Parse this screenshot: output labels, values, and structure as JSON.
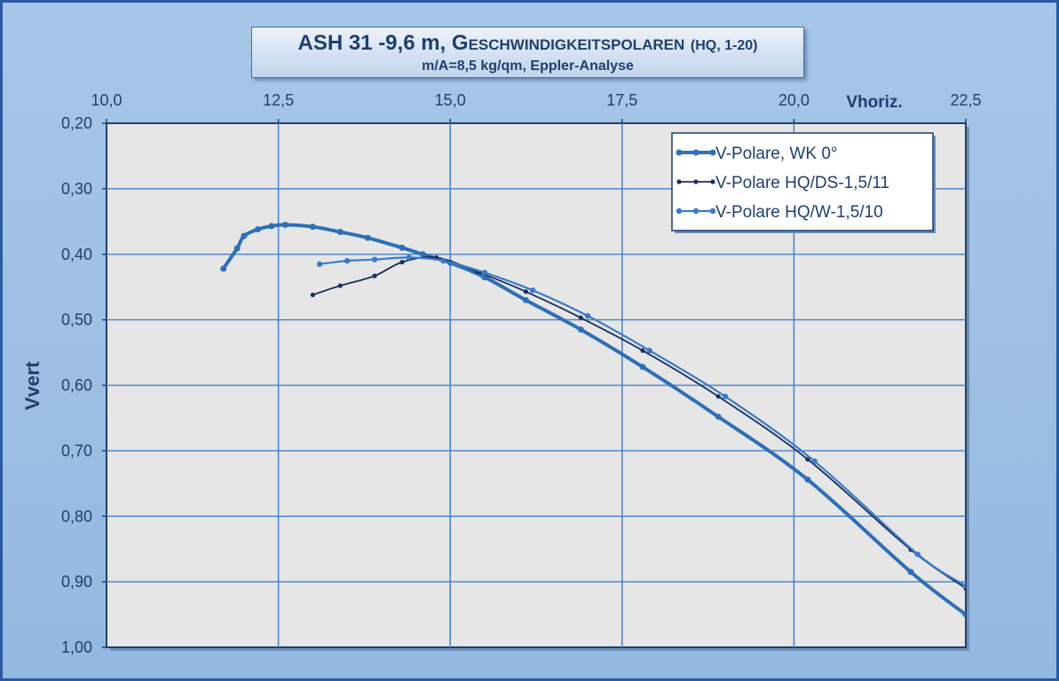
{
  "chart_data": {
    "type": "line",
    "title_main": "ASH 31 -9,6 m, G",
    "title_caps": "ESCHWINDIGKEITSPOLAREN",
    "title_paren": "(HQ, 1-20)",
    "subtitle": "m/A=8,5 kg/qm, Eppler-Analyse",
    "xlabel": "Vhoriz.",
    "ylabel": "Vvert",
    "xlim": [
      10.0,
      22.5
    ],
    "ylim": [
      0.2,
      1.0
    ],
    "y_inverted": true,
    "x_axis_position": "top",
    "x_ticks": [
      "10,0",
      "12,5",
      "15,0",
      "17,5",
      "20,0",
      "22,5"
    ],
    "y_ticks": [
      "0,20",
      "0,30",
      "0,40",
      "0,50",
      "0,60",
      "0,70",
      "0,80",
      "0,90",
      "1,00"
    ],
    "grid": true,
    "legend_position": "top-right",
    "series": [
      {
        "name": "V-Polare, WK 0°",
        "color": "#2f6fb6",
        "points": [
          [
            11.7,
            0.422
          ],
          [
            11.9,
            0.391
          ],
          [
            12.0,
            0.372
          ],
          [
            12.2,
            0.362
          ],
          [
            12.4,
            0.357
          ],
          [
            12.6,
            0.355
          ],
          [
            13.0,
            0.358
          ],
          [
            13.4,
            0.366
          ],
          [
            13.8,
            0.375
          ],
          [
            14.3,
            0.39
          ],
          [
            14.6,
            0.4
          ],
          [
            15.0,
            0.413
          ],
          [
            15.5,
            0.435
          ],
          [
            16.1,
            0.47
          ],
          [
            16.9,
            0.515
          ],
          [
            17.8,
            0.572
          ],
          [
            18.9,
            0.648
          ],
          [
            20.2,
            0.744
          ],
          [
            21.7,
            0.885
          ],
          [
            22.5,
            0.95
          ]
        ]
      },
      {
        "name": "V-Polare HQ/DS-1,5/11",
        "color": "#1b2f5b",
        "points": [
          [
            13.0,
            0.462
          ],
          [
            13.4,
            0.448
          ],
          [
            13.9,
            0.433
          ],
          [
            14.3,
            0.412
          ],
          [
            14.8,
            0.405
          ],
          [
            15.4,
            0.427
          ],
          [
            16.1,
            0.457
          ],
          [
            16.9,
            0.497
          ],
          [
            17.8,
            0.547
          ],
          [
            18.9,
            0.617
          ],
          [
            20.2,
            0.713
          ],
          [
            21.7,
            0.851
          ],
          [
            22.5,
            0.91
          ]
        ]
      },
      {
        "name": "V-Polare HQ/W-1,5/10",
        "color": "#3a7bc8",
        "points": [
          [
            13.1,
            0.415
          ],
          [
            13.5,
            0.41
          ],
          [
            13.9,
            0.408
          ],
          [
            14.4,
            0.405
          ],
          [
            14.9,
            0.41
          ],
          [
            15.5,
            0.428
          ],
          [
            16.2,
            0.455
          ],
          [
            17.0,
            0.494
          ],
          [
            17.9,
            0.547
          ],
          [
            19.0,
            0.617
          ],
          [
            20.3,
            0.716
          ],
          [
            21.8,
            0.858
          ],
          [
            22.5,
            0.906
          ]
        ]
      }
    ]
  }
}
